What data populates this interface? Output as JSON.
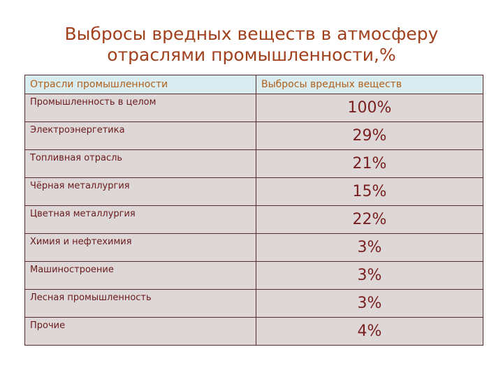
{
  "title": {
    "line1": "Выбросы вредных веществ в атмосферу",
    "line2": "отраслями промышленности,%"
  },
  "table": {
    "headers": [
      "Отрасли промышленности",
      "Выбросы вредных веществ"
    ],
    "rows": [
      {
        "label": "Промышленность в целом",
        "value": "100%"
      },
      {
        "label": "Электроэнергетика",
        "value": "29%"
      },
      {
        "label": "Топливная отрасль",
        "value": "21%"
      },
      {
        "label": "Чёрная металлургия",
        "value": "15%"
      },
      {
        "label": "Цветная металлургия",
        "value": "22%"
      },
      {
        "label": "Химия и нефтехимия",
        "value": "3%"
      },
      {
        "label": "Машиностроение",
        "value": "3%"
      },
      {
        "label": "Лесная промышленность",
        "value": "3%"
      },
      {
        "label": "Прочие",
        "value": "4%"
      }
    ]
  }
}
